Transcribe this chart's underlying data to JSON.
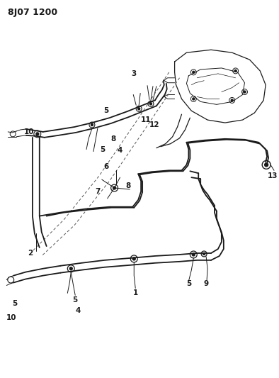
{
  "title": "8J07 1200",
  "bg_color": "#ffffff",
  "line_color": "#1a1a1a",
  "label_color": "#1a1a1a",
  "title_fontsize": 9,
  "label_fontsize": 7.5,
  "fig_width": 3.94,
  "fig_height": 5.33,
  "dpi": 100
}
